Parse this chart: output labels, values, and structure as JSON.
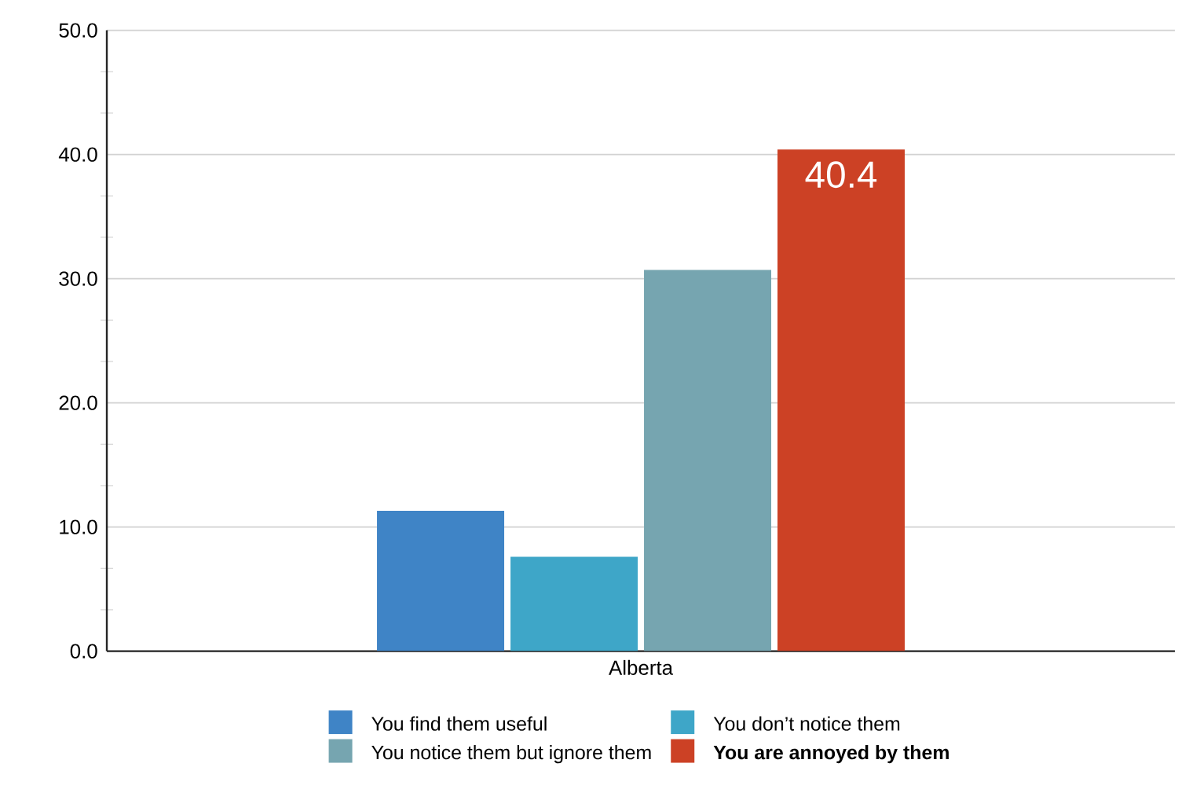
{
  "chart_data": {
    "type": "bar",
    "categories": [
      "Alberta"
    ],
    "series": [
      {
        "name": "You find them useful",
        "color": "#3f84c6",
        "values": [
          11.3
        ]
      },
      {
        "name": "You don’t notice them",
        "color": "#3ea6c8",
        "values": [
          7.6
        ]
      },
      {
        "name": "You notice them but ignore them",
        "color": "#76a5b0",
        "values": [
          30.7
        ]
      },
      {
        "name": "**You are annoyed by them**",
        "color": "#cc4125",
        "values": [
          40.4
        ],
        "value_labels": [
          "40.4"
        ]
      }
    ],
    "ylim": [
      0,
      50
    ],
    "yticks": [
      {
        "value": 0,
        "label": "0.0"
      },
      {
        "value": 10,
        "label": "10.0"
      },
      {
        "value": 20,
        "label": "20.0"
      },
      {
        "value": 30,
        "label": "30.0"
      },
      {
        "value": 40,
        "label": "40.0"
      },
      {
        "value": 50,
        "label": "50.0"
      }
    ],
    "grid": "y",
    "legend": "bottom"
  }
}
